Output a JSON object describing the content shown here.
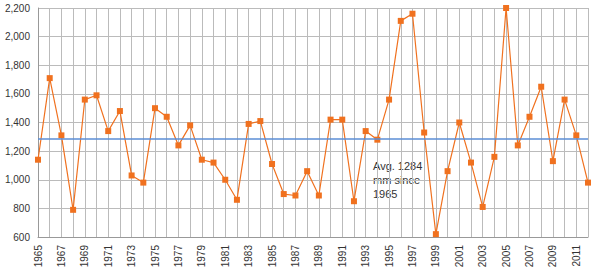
{
  "chart_data": {
    "type": "line",
    "categories": [
      "1965",
      null,
      "1967",
      null,
      "1969",
      null,
      "1971",
      null,
      "1973",
      null,
      "1975",
      null,
      "1977",
      null,
      "1979",
      null,
      "1981",
      null,
      "1983",
      null,
      "1985",
      null,
      "1987",
      null,
      "1989",
      null,
      "1991",
      null,
      "1993",
      null,
      "1995",
      null,
      "1997",
      null,
      "1999",
      null,
      "2001",
      null,
      "2003",
      null,
      "2005",
      null,
      "2007",
      null,
      "2009",
      null,
      "2011",
      null
    ],
    "values": [
      1140,
      1710,
      1310,
      790,
      1560,
      1590,
      1340,
      1480,
      1030,
      980,
      1500,
      1440,
      1240,
      1380,
      1140,
      1120,
      1000,
      860,
      1390,
      1410,
      1110,
      900,
      890,
      1060,
      890,
      1420,
      1420,
      850,
      1340,
      1280,
      1560,
      2110,
      2160,
      1330,
      620,
      1060,
      1400,
      1120,
      810,
      1160,
      2200,
      1240,
      1440,
      1650,
      1130,
      1560,
      1310,
      980
    ],
    "color": "#f0711f",
    "marker": "square",
    "ylim": [
      600,
      2200
    ],
    "yticks": [
      600,
      800,
      1000,
      1200,
      1400,
      1600,
      1800,
      2000,
      2200
    ],
    "grid": true,
    "reference_line": {
      "value": 1284,
      "color": "#5b8ed6",
      "label": "Avg. 1284\nmm since\n1965"
    }
  }
}
